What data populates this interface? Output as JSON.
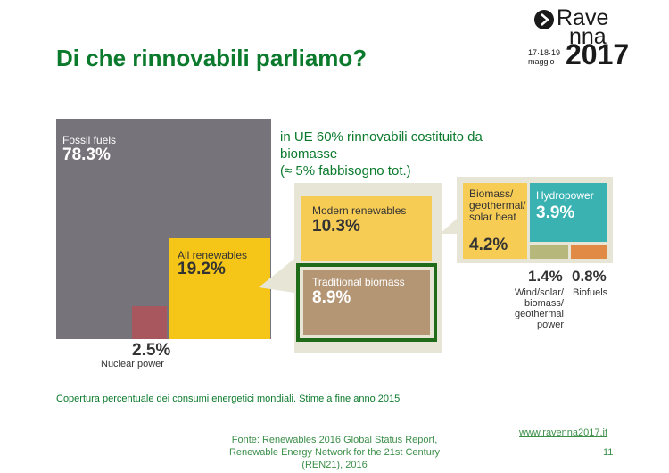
{
  "slide": {
    "title": "Di che rinnovabili parliamo?",
    "annotation_line1": "in UE 60% rinnovabili costituito da",
    "annotation_line2": "biomasse",
    "annotation_line3": "(≈ 5% fabbisogno tot.)",
    "caption": "Copertura percentuale dei consumi energetici mondiali. Stime a fine anno 2015",
    "source_line1": "Fonte: Renewables 2016 Global Status Report,",
    "source_line2": "Renewable Energy Network for the 21st Century",
    "source_line3": "(REN21), 2016",
    "website": "www.ravenna2017.it",
    "page_number": "11"
  },
  "logo": {
    "word1": "Rave",
    "word2": "nna",
    "dates": "17·18·19",
    "month": "maggio",
    "year": "2017"
  },
  "colors": {
    "fossil": "#76737a",
    "nuclear": "#a8575e",
    "renewables": "#f5c518",
    "modern": "#f7cc55",
    "traditional": "#b49675",
    "hydro": "#3bb2b2",
    "wind": "#b6b77a",
    "biofuels": "#e08a45",
    "highlight": "#1f6b19",
    "callout": "#e7e5d6"
  },
  "chart_data": {
    "type": "treemap",
    "title": "",
    "items": [
      {
        "label": "Fossil fuels",
        "value": 78.3,
        "display": "78.3%"
      },
      {
        "label": "Nuclear power",
        "value": 2.5,
        "display": "2.5%"
      },
      {
        "label": "All renewables",
        "value": 19.2,
        "display": "19.2%"
      }
    ],
    "renewables_breakdown": [
      {
        "label": "Modern renewables",
        "value": 10.3,
        "display": "10.3%"
      },
      {
        "label": "Traditional biomass",
        "value": 8.9,
        "display": "8.9%"
      }
    ],
    "modern_breakdown": [
      {
        "label_lines": [
          "Biomass/",
          "geothermal/",
          "solar heat"
        ],
        "value": 4.2,
        "display": "4.2%"
      },
      {
        "label": "Hydropower",
        "value": 3.9,
        "display": "3.9%"
      },
      {
        "label_lines": [
          "Wind/solar/",
          "biomass/",
          "geothermal",
          "power"
        ],
        "value": 1.4,
        "display": "1.4%"
      },
      {
        "label": "Biofuels",
        "value": 0.8,
        "display": "0.8%"
      }
    ]
  }
}
